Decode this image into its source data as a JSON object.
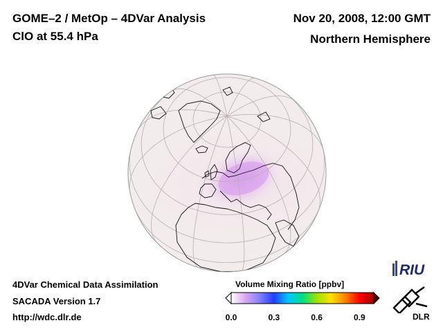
{
  "header": {
    "title": "GOME–2 / MetOp – 4DVar Analysis",
    "species": "ClO at 55.4 hPa",
    "datetime": "Nov 20, 2008, 12:00 GMT",
    "region": "Northern Hemisphere"
  },
  "map": {
    "projection": "orthographic",
    "coastline_color": "#000000",
    "ocean_color": "#f2ecec",
    "max_anomaly_color": "#d89ae8"
  },
  "colorbar": {
    "title": "Volume Mixing Ratio [ppbv]",
    "ticks": [
      "0.0",
      "0.3",
      "0.6",
      "0.9"
    ],
    "tick_values": [
      0.0,
      0.3,
      0.6,
      0.9
    ],
    "range": [
      0.0,
      1.0
    ],
    "colors": [
      "#ffffff",
      "#d8a6f0",
      "#8080ff",
      "#2040ff",
      "#00c8ff",
      "#00e080",
      "#a0e000",
      "#ffe000",
      "#ff8000",
      "#ff0000",
      "#a00000"
    ]
  },
  "footer": {
    "line1": "4DVar Chemical Data Assimilation",
    "line2": "SACADA Version 1.7",
    "line3": "http://wdc.dlr.de"
  },
  "logos": {
    "riu_text": "RIU",
    "dlr_text": "DLR"
  }
}
